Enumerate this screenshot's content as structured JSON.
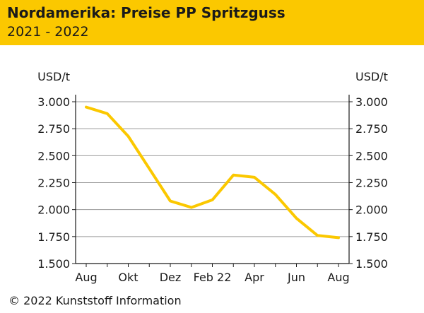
{
  "header": {
    "title": "Nordamerika: Preise PP Spritzguss",
    "subtitle": "2021 - 2022",
    "background_color": "#fbc800"
  },
  "chart_data": {
    "type": "line",
    "title": "Nordamerika: Preise PP Spritzguss",
    "subtitle": "2021 - 2022",
    "ylabel": "USD/t",
    "ylabel_right": "USD/t",
    "xlabel": "",
    "ylim": [
      1500,
      3000
    ],
    "yticks": [
      1500,
      1750,
      2000,
      2250,
      2500,
      2750,
      3000
    ],
    "ytick_labels": [
      "1.500",
      "1.750",
      "2.000",
      "2.250",
      "2.500",
      "2.750",
      "3.000"
    ],
    "x": [
      "2021-08",
      "2021-09",
      "2021-10",
      "2021-11",
      "2021-12",
      "2022-01",
      "2022-02",
      "2022-03",
      "2022-04",
      "2022-05",
      "2022-06",
      "2022-07",
      "2022-08"
    ],
    "xtick_labels": [
      "Aug",
      "",
      "Okt",
      "",
      "Dez",
      "",
      "Feb 22",
      "",
      "Apr",
      "",
      "Jun",
      "",
      "Aug"
    ],
    "series": [
      {
        "color": "#fbc800",
        "values": [
          2950,
          2890,
          2680,
          2380,
          2080,
          2020,
          2090,
          2320,
          2300,
          2140,
          1920,
          1760,
          1740
        ]
      }
    ],
    "grid": true,
    "legend": "none"
  },
  "footer": {
    "copyright": "© 2022 Kunststoff Information"
  }
}
